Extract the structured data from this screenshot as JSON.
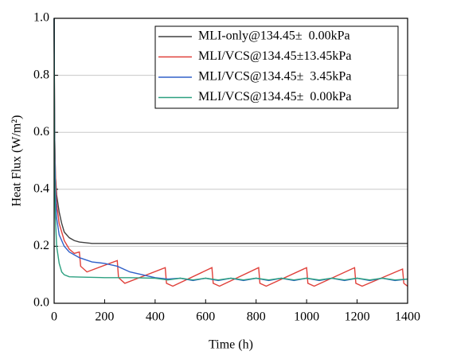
{
  "chart_data": {
    "type": "line",
    "xlabel": "Time (h)",
    "ylabel": "Heat Flux (W/m²)",
    "xlim": [
      0,
      1400
    ],
    "xticks": [
      0,
      200,
      400,
      600,
      800,
      1000,
      1200,
      1400
    ],
    "ylim": [
      0,
      1
    ],
    "yticks": [
      {
        "value": 0,
        "label": "0.0"
      },
      {
        "value": 0.2,
        "label": "0.2"
      },
      {
        "value": 0.4,
        "label": "0.4"
      },
      {
        "value": 0.6,
        "label": "0.6"
      },
      {
        "value": 0.8,
        "label": "0.8"
      },
      {
        "value": 1,
        "label": "1.0"
      }
    ],
    "grid": true,
    "legend": "upper right",
    "series": [
      {
        "name": "MLI-only@134.45±  0.00kPa",
        "color": "#404040",
        "x": [
          0,
          2,
          5,
          10,
          20,
          30,
          40,
          60,
          80,
          100,
          150,
          200,
          1400
        ],
        "values": [
          1.0,
          0.6,
          0.45,
          0.38,
          0.32,
          0.28,
          0.25,
          0.23,
          0.22,
          0.215,
          0.21,
          0.21,
          0.21
        ]
      },
      {
        "name": "MLI/VCS@134.45±13.45kPa",
        "color": "#e0403a",
        "x": [
          0,
          2,
          5,
          10,
          20,
          40,
          60,
          80,
          100,
          105,
          130,
          250,
          255,
          280,
          440,
          445,
          470,
          625,
          630,
          655,
          810,
          815,
          840,
          1000,
          1005,
          1030,
          1190,
          1195,
          1220,
          1380,
          1385,
          1400
        ],
        "values": [
          1.0,
          0.6,
          0.45,
          0.35,
          0.28,
          0.22,
          0.19,
          0.175,
          0.18,
          0.13,
          0.11,
          0.15,
          0.09,
          0.07,
          0.125,
          0.07,
          0.06,
          0.125,
          0.07,
          0.06,
          0.125,
          0.07,
          0.06,
          0.125,
          0.07,
          0.06,
          0.125,
          0.07,
          0.06,
          0.12,
          0.07,
          0.06
        ]
      },
      {
        "name": "MLI/VCS@134.45±  3.45kPa",
        "color": "#3060c8",
        "x": [
          0,
          2,
          5,
          10,
          20,
          40,
          60,
          80,
          100,
          150,
          200,
          250,
          300,
          350,
          400,
          450,
          500,
          550,
          600,
          650,
          700,
          750,
          800,
          850,
          900,
          950,
          1000,
          1050,
          1100,
          1150,
          1200,
          1250,
          1300,
          1350,
          1400
        ],
        "values": [
          1.0,
          0.55,
          0.4,
          0.3,
          0.24,
          0.2,
          0.18,
          0.17,
          0.16,
          0.145,
          0.14,
          0.13,
          0.11,
          0.1,
          0.09,
          0.085,
          0.088,
          0.08,
          0.088,
          0.08,
          0.088,
          0.08,
          0.088,
          0.08,
          0.088,
          0.08,
          0.088,
          0.08,
          0.088,
          0.08,
          0.088,
          0.08,
          0.088,
          0.08,
          0.085
        ]
      },
      {
        "name": "MLI/VCS@134.45±  0.00kPa",
        "color": "#2ca080",
        "x": [
          0,
          2,
          5,
          10,
          20,
          30,
          40,
          60,
          100,
          200,
          300,
          400,
          450,
          500,
          550,
          600,
          650,
          700,
          750,
          800,
          850,
          900,
          950,
          1000,
          1050,
          1100,
          1150,
          1200,
          1250,
          1300,
          1350,
          1400
        ],
        "values": [
          1.0,
          0.45,
          0.3,
          0.2,
          0.14,
          0.11,
          0.1,
          0.093,
          0.092,
          0.09,
          0.09,
          0.088,
          0.082,
          0.088,
          0.082,
          0.088,
          0.082,
          0.088,
          0.082,
          0.088,
          0.082,
          0.088,
          0.082,
          0.088,
          0.082,
          0.088,
          0.082,
          0.088,
          0.082,
          0.088,
          0.082,
          0.085
        ]
      }
    ]
  }
}
